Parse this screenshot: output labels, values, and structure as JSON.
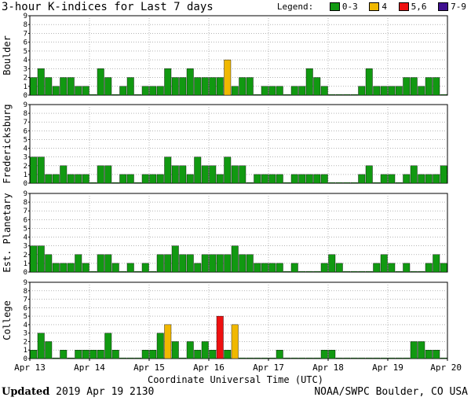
{
  "title": "3-hour K-indices for Last 7 days",
  "legend": {
    "label": "Legend:",
    "items": [
      {
        "label": "0-3",
        "color": "#119911"
      },
      {
        "label": "4",
        "color": "#f0b800"
      },
      {
        "label": "5,6",
        "color": "#ee1111"
      },
      {
        "label": "7-9",
        "color": "#3f0f8f"
      }
    ]
  },
  "footer": {
    "updated_label": "Updated",
    "updated_value": "2019 Apr 19 2130",
    "source": "NOAA/SWPC Boulder, CO USA"
  },
  "chart_data": {
    "type": "bar",
    "xlabel": "Coordinate Universal Time (UTC)",
    "x_tick_labels": [
      "Apr 13",
      "Apr 14",
      "Apr 15",
      "Apr 16",
      "Apr 17",
      "Apr 18",
      "Apr 19",
      "Apr 20"
    ],
    "y_ticks": [
      0,
      1,
      2,
      3,
      4,
      5,
      6,
      7,
      8,
      9
    ],
    "ylim": [
      0,
      9
    ],
    "bins_per_day": 8,
    "color_scale": {
      "0-3": "#119911",
      "4": "#f0b800",
      "5-6": "#ee1111",
      "7-9": "#3f0f8f"
    },
    "series": [
      {
        "name": "Boulder",
        "values": [
          2,
          3,
          2,
          1,
          2,
          2,
          1,
          1,
          0,
          3,
          2,
          0,
          1,
          2,
          0,
          1,
          1,
          1,
          3,
          2,
          2,
          3,
          2,
          2,
          2,
          2,
          4,
          1,
          2,
          2,
          0,
          1,
          1,
          1,
          0,
          1,
          1,
          3,
          2,
          1,
          0,
          0,
          0,
          0,
          1,
          3,
          1,
          1,
          1,
          1,
          2,
          2,
          1,
          2,
          2,
          0
        ]
      },
      {
        "name": "Fredericksburg",
        "values": [
          3,
          3,
          1,
          1,
          2,
          1,
          1,
          1,
          0,
          2,
          2,
          0,
          1,
          1,
          0,
          1,
          1,
          1,
          3,
          2,
          2,
          1,
          3,
          2,
          2,
          1,
          3,
          2,
          2,
          0,
          1,
          1,
          1,
          1,
          0,
          1,
          1,
          1,
          1,
          1,
          0,
          0,
          0,
          0,
          1,
          2,
          0,
          1,
          1,
          0,
          1,
          2,
          1,
          1,
          1,
          2
        ]
      },
      {
        "name": "Est. Planetary",
        "values": [
          3,
          3,
          2,
          1,
          1,
          1,
          2,
          1,
          0,
          2,
          2,
          1,
          0,
          1,
          0,
          1,
          0,
          2,
          2,
          3,
          2,
          2,
          1,
          2,
          2,
          2,
          2,
          3,
          2,
          2,
          1,
          1,
          1,
          1,
          0,
          1,
          0,
          0,
          0,
          1,
          2,
          1,
          0,
          0,
          0,
          0,
          1,
          2,
          1,
          0,
          1,
          0,
          0,
          1,
          2,
          1
        ]
      },
      {
        "name": "College",
        "values": [
          1,
          3,
          2,
          0,
          1,
          0,
          1,
          1,
          1,
          1,
          3,
          1,
          0,
          0,
          0,
          1,
          1,
          3,
          4,
          2,
          0,
          2,
          1,
          2,
          1,
          5,
          1,
          4,
          0,
          0,
          0,
          0,
          0,
          1,
          0,
          0,
          0,
          0,
          0,
          1,
          1,
          0,
          0,
          0,
          0,
          0,
          0,
          0,
          0,
          0,
          0,
          2,
          2,
          1,
          1,
          0
        ]
      }
    ]
  }
}
